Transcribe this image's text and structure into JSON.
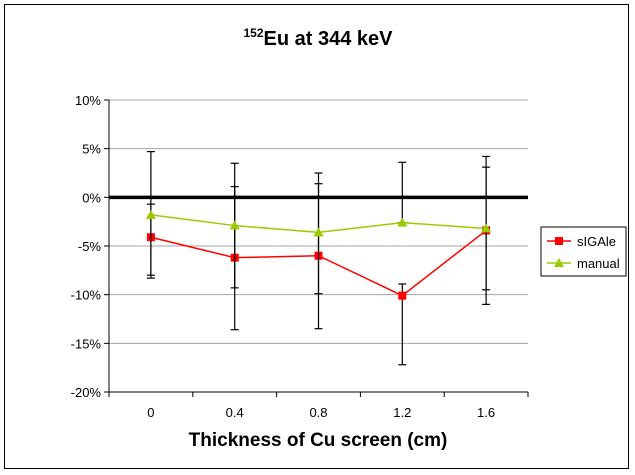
{
  "chart_data": {
    "type": "line",
    "title_sup": "152",
    "title_main": "Eu at 344 keV",
    "xlabel": "Thickness of Cu screen (cm)",
    "ylabel": "",
    "categories": [
      "0",
      "0.4",
      "0.8",
      "1.2",
      "1.6"
    ],
    "ylim": [
      -0.2,
      0.1
    ],
    "yticks": [
      {
        "value": 0.1,
        "label": "10%"
      },
      {
        "value": 0.05,
        "label": "5%"
      },
      {
        "value": 0.0,
        "label": "0%"
      },
      {
        "value": -0.05,
        "label": "-5%"
      },
      {
        "value": -0.1,
        "label": "-10%"
      },
      {
        "value": -0.15,
        "label": "-15%"
      },
      {
        "value": -0.2,
        "label": "-20%"
      }
    ],
    "grid": true,
    "zero_line": true,
    "legend_position": "right",
    "series": [
      {
        "name": "sIGAle",
        "color": "#ff0000",
        "marker": "square",
        "values": [
          -0.041,
          -0.062,
          -0.06,
          -0.101,
          -0.034
        ],
        "error_low": [
          -0.08,
          -0.136,
          -0.135,
          -0.172,
          -0.11
        ],
        "error_high": [
          -0.007,
          0.011,
          0.014,
          -0.089,
          0.031
        ]
      },
      {
        "name": "manual",
        "color": "#99cc00",
        "marker": "triangle",
        "values": [
          -0.018,
          -0.029,
          -0.036,
          -0.026,
          -0.032
        ],
        "error_low": [
          -0.083,
          -0.093,
          -0.099,
          -0.026,
          -0.095
        ],
        "error_high": [
          0.047,
          0.035,
          0.025,
          0.036,
          0.042
        ]
      }
    ]
  }
}
